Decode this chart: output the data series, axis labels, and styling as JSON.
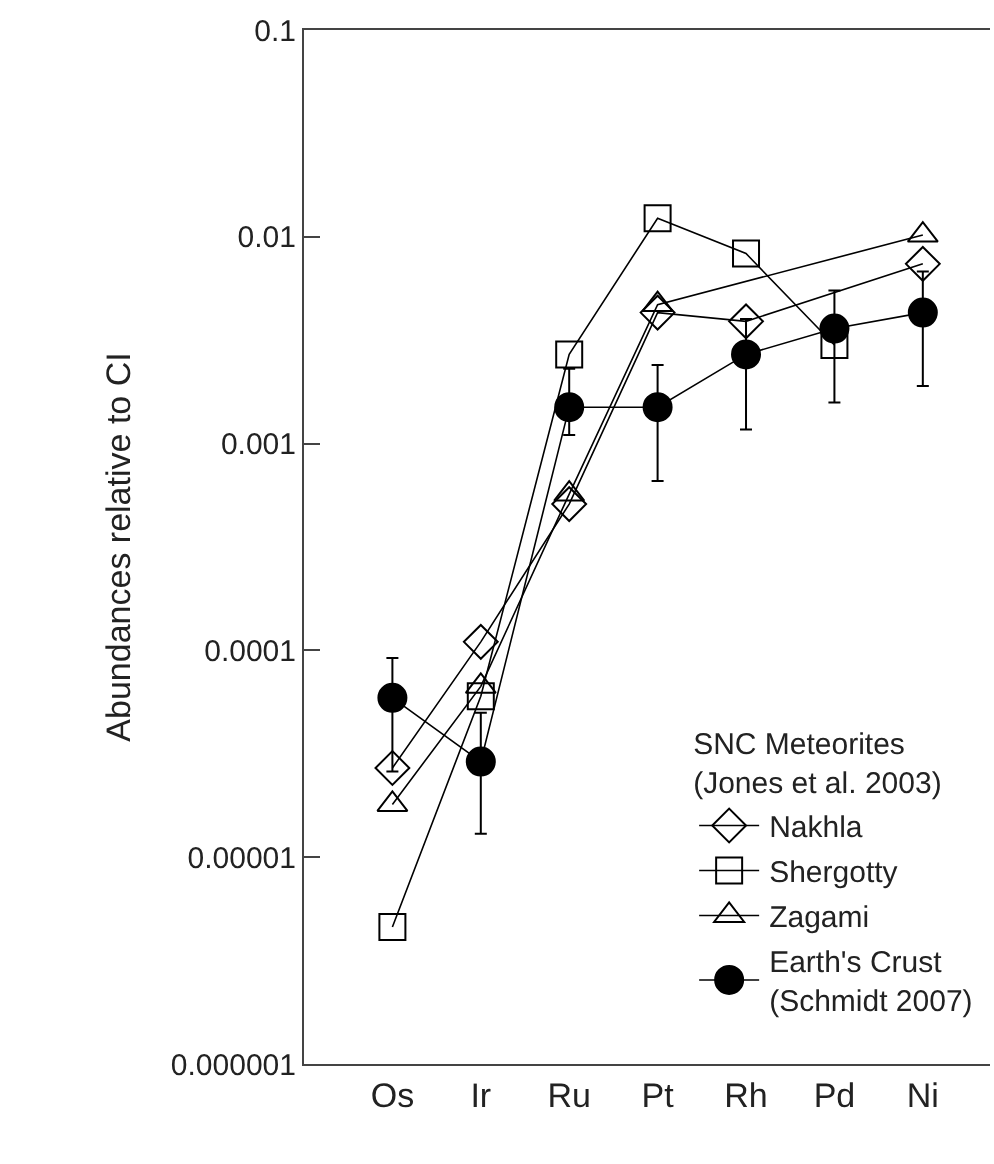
{
  "chart_data": {
    "type": "line",
    "ylabel": "Abundances relative to CI",
    "legend_title": "SNC Meteorites\n(Jones et al. 2003)",
    "categories": [
      "Os",
      "Ir",
      "Ru",
      "Pt",
      "Rh",
      "Pd",
      "Ni"
    ],
    "log": "y",
    "ylim": [
      1e-06,
      0.1
    ],
    "yticks": [
      {
        "value": 0.1,
        "label": "0.1"
      },
      {
        "value": 0.01,
        "label": "0.01"
      },
      {
        "value": 0.001,
        "label": "0.001"
      },
      {
        "value": 0.0001,
        "label": "0.0001"
      },
      {
        "value": 1e-05,
        "label": "0.00001"
      },
      {
        "value": 1e-06,
        "label": "0.000001"
      }
    ],
    "grid": false,
    "legend": "bottom right",
    "series": [
      {
        "name": "Nakhla",
        "color": "#000000",
        "marker": "diamond",
        "values": [
          2.7e-05,
          0.00011,
          0.00051,
          0.0043,
          0.0039,
          null,
          0.0074
        ]
      },
      {
        "name": "Shergotty",
        "color": "#000000",
        "marker": "square",
        "values": [
          4.6e-06,
          6e-05,
          0.0027,
          0.0123,
          0.0083,
          0.003,
          null
        ]
      },
      {
        "name": "Zagami",
        "color": "#000000",
        "marker": "triangle",
        "values": [
          1.8e-05,
          6.7e-05,
          0.00057,
          0.0047,
          null,
          null,
          0.0102
        ]
      },
      {
        "name": "Earth's Crust\n(Schmidt 2007)",
        "color": "#000000",
        "marker": "circle",
        "values": [
          5.9e-05,
          2.9e-05,
          0.0015,
          0.0015,
          0.0027,
          0.0036,
          0.0043
        ],
        "errors": [
          [
            2.6e-05,
            9.2e-05
          ],
          [
            1.3e-05,
            5e-05
          ],
          [
            0.0011,
            0.0023
          ],
          [
            0.00066,
            0.0024
          ],
          [
            0.00117,
            0.004
          ],
          [
            0.00158,
            0.0055
          ],
          [
            0.0019,
            0.0068
          ]
        ]
      }
    ]
  }
}
